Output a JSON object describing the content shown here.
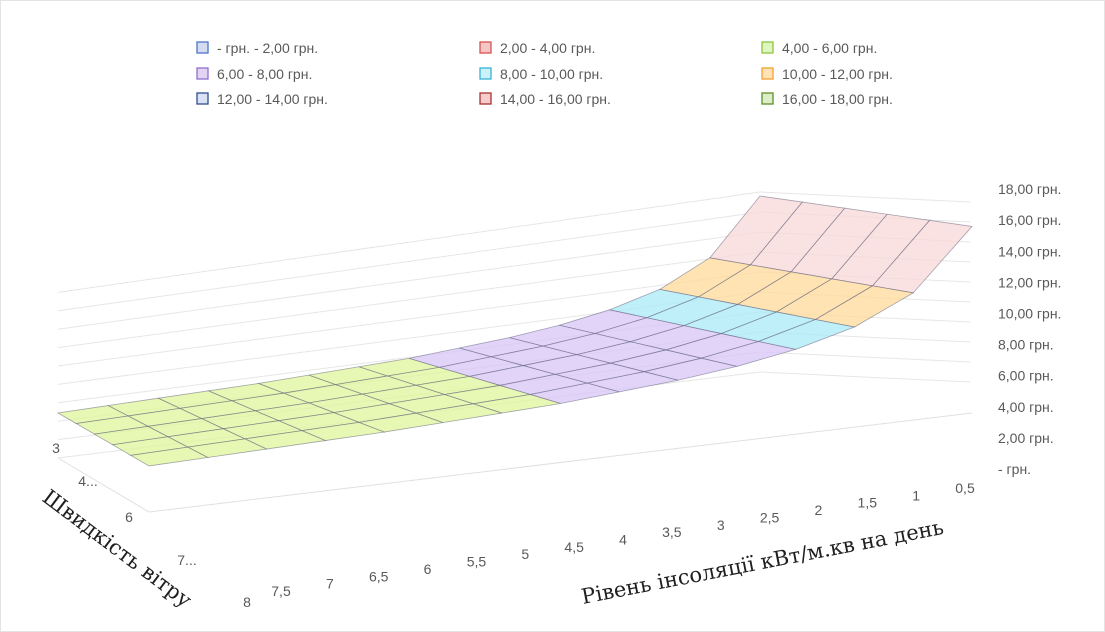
{
  "chart_data": {
    "type": "surface",
    "legend_position": "top",
    "legend": [
      {
        "label": "- грн. - 2,00 грн.",
        "color": "#d4dcf2",
        "border": "#4f74c9"
      },
      {
        "label": "2,00 - 4,00 грн.",
        "color": "#f4c6c6",
        "border": "#d9534f"
      },
      {
        "label": "4,00 - 6,00 грн.",
        "color": "#dff5c0",
        "border": "#8cc63f"
      },
      {
        "label": "6,00 - 8,00 грн.",
        "color": "#e3d4f4",
        "border": "#8e6fd1"
      },
      {
        "label": "8,00 - 10,00 грн.",
        "color": "#ccf1f9",
        "border": "#36b3d6"
      },
      {
        "label": "10,00 - 12,00 грн.",
        "color": "#ffe2b8",
        "border": "#f0a22e"
      },
      {
        "label": "12,00 - 14,00 грн.",
        "color": "#d9e3f5",
        "border": "#334f8f"
      },
      {
        "label": "14,00 - 16,00 грн.",
        "color": "#f6cccc",
        "border": "#a83232"
      },
      {
        "label": "16,00 - 18,00 грн.",
        "color": "#dcedc8",
        "border": "#5f8f2a"
      }
    ],
    "band_colors": [
      "#f3aaaa",
      "#ddf59a",
      "#d8c6f7",
      "#a9eaf7",
      "#ffd99a",
      "#dde8fa",
      "#f9d8d8",
      "#e3f2c4"
    ],
    "z_axis": {
      "ticks": [
        "- грн.",
        "2,00 грн.",
        "4,00 грн.",
        "6,00 грн.",
        "8,00 грн.",
        "10,00 грн.",
        "12,00 грн.",
        "14,00 грн.",
        "16,00 грн.",
        "18,00 грн."
      ],
      "range": [
        0,
        18
      ]
    },
    "x_axis": {
      "title": "Рівень інсоляції кВт/м.кв на день",
      "ticks": [
        "0,5",
        "1",
        "1,5",
        "2",
        "2,5",
        "3",
        "3,5",
        "4",
        "4,5",
        "5",
        "5,5",
        "6",
        "6,5",
        "7",
        "7,5"
      ]
    },
    "y_axis": {
      "title": "Швидкість вітру",
      "ticks": [
        "3",
        "4...",
        "6",
        "7...",
        "8"
      ]
    },
    "surface": {
      "x": [
        0.5,
        1,
        1.5,
        2,
        2.5,
        3,
        3.5,
        4,
        4.5,
        5,
        5.5,
        6,
        6.5,
        7,
        7.5
      ],
      "y_rows": 5,
      "values_by_x": [
        17.6,
        12.1,
        9.6,
        8.2,
        7.3,
        6.7,
        6.3,
        5.9,
        5.7,
        5.5,
        5.3,
        5.2,
        5.1,
        5.0,
        4.9
      ]
    }
  }
}
